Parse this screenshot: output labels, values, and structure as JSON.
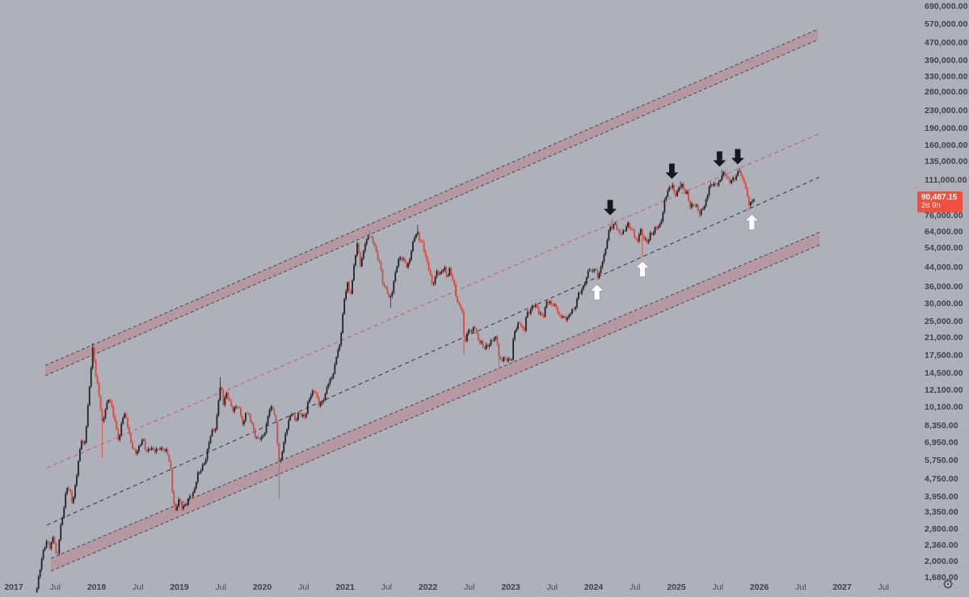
{
  "app": {
    "background": "#aeb1b9",
    "axis_text_color": "#3d414b"
  },
  "price_scale": {
    "labels": [
      "690,000.00",
      "570,000.00",
      "470,000.00",
      "390,000.00",
      "330,000.00",
      "280,000.00",
      "230,000.00",
      "190,000.00",
      "160,000.00",
      "135,000.00",
      "111,000.00",
      "76,000.00",
      "64,000.00",
      "54,000.00",
      "44,000.00",
      "36,000.00",
      "30,000.00",
      "25,000.00",
      "21,000.00",
      "17,500.00",
      "14,500.00",
      "12,100.00",
      "10,100.00",
      "8,350.00",
      "6,950.00",
      "5,750.00",
      "4,750.00",
      "3,950.00",
      "3,350.00",
      "2,800.00",
      "2,360.00",
      "2,000.00",
      "1,680.00"
    ],
    "current": {
      "price": "90,487.15",
      "countdown": "2d 9h",
      "bg": "#f2503c",
      "text_color": "#ffffff"
    },
    "settings_icon": "gear-icon"
  },
  "time_scale": {
    "ticks": [
      {
        "label": "2017",
        "t": 2017,
        "major": true
      },
      {
        "label": "Jul",
        "t": 2017.5,
        "major": false
      },
      {
        "label": "2018",
        "t": 2018,
        "major": true
      },
      {
        "label": "Jul",
        "t": 2018.5,
        "major": false
      },
      {
        "label": "2019",
        "t": 2019,
        "major": true
      },
      {
        "label": "Jul",
        "t": 2019.5,
        "major": false
      },
      {
        "label": "2020",
        "t": 2020,
        "major": true
      },
      {
        "label": "Jul",
        "t": 2020.5,
        "major": false
      },
      {
        "label": "2021",
        "t": 2021,
        "major": true
      },
      {
        "label": "Jul",
        "t": 2021.5,
        "major": false
      },
      {
        "label": "2022",
        "t": 2022,
        "major": true
      },
      {
        "label": "Jul",
        "t": 2022.5,
        "major": false
      },
      {
        "label": "2023",
        "t": 2023,
        "major": true
      },
      {
        "label": "Jul",
        "t": 2023.5,
        "major": false
      },
      {
        "label": "2024",
        "t": 2024,
        "major": true
      },
      {
        "label": "Jul",
        "t": 2024.5,
        "major": false
      },
      {
        "label": "2025",
        "t": 2025,
        "major": true
      },
      {
        "label": "Jul",
        "t": 2025.5,
        "major": false
      },
      {
        "label": "2026",
        "t": 2026,
        "major": true
      },
      {
        "label": "Jul",
        "t": 2026.5,
        "major": false
      },
      {
        "label": "2027",
        "t": 2027,
        "major": true
      },
      {
        "label": "Jul",
        "t": 2027.5,
        "major": false
      }
    ]
  },
  "chart_data": {
    "type": "candlestick",
    "timeframe": "weekly",
    "log_scale": true,
    "grid": false,
    "layout_hints": {
      "visible_time_range": [
        2016.83,
        2027.86
      ],
      "visible_price_range": [
        1680,
        736000
      ],
      "price_axis_side": "right",
      "time_axis_side": "bottom"
    },
    "colors": {
      "up_candle": "#212227",
      "down_candle": "#d9483c",
      "band_fill": "rgba(196,100,110,0.30)",
      "band_edge": "#4a464e",
      "pink_dashed_line": "#c4636d",
      "black_dashed_line": "#3b3d44",
      "down_arrow": "#17181c",
      "up_arrow": "#ffffff"
    },
    "channel": {
      "bands": [
        {
          "name": "upper-channel-band",
          "top_edge": [
            2017.38,
            15700,
            2026.71,
            543000
          ],
          "bottom_edge": [
            2017.38,
            14100,
            2026.71,
            486000
          ]
        },
        {
          "name": "lower-channel-band",
          "top_edge": [
            2017.45,
            2060,
            2026.73,
            64000
          ],
          "bottom_edge": [
            2017.45,
            1800,
            2026.73,
            56000
          ]
        }
      ],
      "lines": [
        {
          "name": "channel-upper-quartile-line",
          "style": "pink-dashed",
          "points": [
            2017.4,
            5340,
            2026.72,
            180000
          ]
        },
        {
          "name": "channel-median-line",
          "style": "black-dashed",
          "points": [
            2017.4,
            2920,
            2026.72,
            114000
          ]
        }
      ]
    },
    "markers": [
      {
        "dir": "up",
        "t": 2024.04,
        "price": 38500
      },
      {
        "dir": "down",
        "t": 2024.2,
        "price": 73800
      },
      {
        "dir": "up",
        "t": 2024.59,
        "price": 49100
      },
      {
        "dir": "down",
        "t": 2024.945,
        "price": 108300
      },
      {
        "dir": "down",
        "t": 2025.52,
        "price": 123200
      },
      {
        "dir": "down",
        "t": 2025.74,
        "price": 126200
      },
      {
        "dir": "up",
        "t": 2025.91,
        "price": 80600
      }
    ],
    "price_anchors": [
      [
        2017.28,
        1500
      ],
      [
        2017.32,
        1850
      ],
      [
        2017.36,
        2250
      ],
      [
        2017.4,
        2500
      ],
      [
        2017.44,
        2300
      ],
      [
        2017.48,
        2600
      ],
      [
        2017.52,
        2000
      ],
      [
        2017.56,
        2800
      ],
      [
        2017.6,
        3400
      ],
      [
        2017.64,
        4350
      ],
      [
        2017.68,
        4150
      ],
      [
        2017.71,
        3650
      ],
      [
        2017.74,
        4400
      ],
      [
        2017.78,
        5700
      ],
      [
        2017.82,
        7200
      ],
      [
        2017.85,
        6500
      ],
      [
        2017.89,
        9700
      ],
      [
        2017.93,
        15000
      ],
      [
        2017.955,
        18900
      ],
      [
        2017.99,
        14200
      ],
      [
        2018.03,
        11500
      ],
      [
        2018.07,
        8600
      ],
      [
        2018.11,
        10000
      ],
      [
        2018.15,
        11100
      ],
      [
        2018.19,
        9900
      ],
      [
        2018.23,
        8500
      ],
      [
        2018.27,
        7000
      ],
      [
        2018.31,
        9000
      ],
      [
        2018.35,
        9350
      ],
      [
        2018.4,
        7500
      ],
      [
        2018.44,
        6450
      ],
      [
        2018.48,
        6150
      ],
      [
        2018.52,
        6750
      ],
      [
        2018.56,
        7400
      ],
      [
        2018.6,
        6300
      ],
      [
        2018.65,
        6500
      ],
      [
        2018.7,
        6450
      ],
      [
        2018.75,
        6600
      ],
      [
        2018.8,
        6400
      ],
      [
        2018.85,
        6350
      ],
      [
        2018.89,
        5550
      ],
      [
        2018.92,
        4000
      ],
      [
        2018.95,
        3300
      ],
      [
        2018.99,
        3800
      ],
      [
        2019.03,
        3550
      ],
      [
        2019.08,
        3650
      ],
      [
        2019.12,
        3900
      ],
      [
        2019.17,
        4050
      ],
      [
        2019.22,
        5050
      ],
      [
        2019.27,
        5300
      ],
      [
        2019.32,
        5800
      ],
      [
        2019.36,
        7200
      ],
      [
        2019.4,
        8050
      ],
      [
        2019.44,
        8000
      ],
      [
        2019.47,
        10800
      ],
      [
        2019.5,
        12900
      ],
      [
        2019.53,
        10600
      ],
      [
        2019.57,
        11900
      ],
      [
        2019.61,
        10500
      ],
      [
        2019.65,
        9600
      ],
      [
        2019.69,
        10400
      ],
      [
        2019.73,
        9900
      ],
      [
        2019.77,
        8100
      ],
      [
        2019.8,
        9550
      ],
      [
        2019.84,
        9200
      ],
      [
        2019.88,
        8500
      ],
      [
        2019.92,
        7300
      ],
      [
        2019.96,
        7200
      ],
      [
        2020.0,
        7300
      ],
      [
        2020.04,
        8050
      ],
      [
        2020.08,
        9900
      ],
      [
        2020.12,
        10000
      ],
      [
        2020.16,
        8900
      ],
      [
        2020.21,
        5400
      ],
      [
        2020.24,
        6400
      ],
      [
        2020.28,
        7500
      ],
      [
        2020.32,
        8750
      ],
      [
        2020.36,
        9700
      ],
      [
        2020.4,
        8800
      ],
      [
        2020.44,
        9450
      ],
      [
        2020.48,
        9150
      ],
      [
        2020.52,
        9200
      ],
      [
        2020.56,
        11100
      ],
      [
        2020.6,
        11700
      ],
      [
        2020.64,
        11900
      ],
      [
        2020.68,
        10450
      ],
      [
        2020.72,
        10700
      ],
      [
        2020.76,
        11500
      ],
      [
        2020.8,
        13050
      ],
      [
        2020.84,
        13800
      ],
      [
        2020.88,
        16100
      ],
      [
        2020.91,
        18700
      ],
      [
        2020.94,
        19150
      ],
      [
        2020.97,
        26500
      ],
      [
        2021.0,
        33000
      ],
      [
        2021.03,
        38200
      ],
      [
        2021.06,
        32300
      ],
      [
        2021.09,
        38900
      ],
      [
        2021.12,
        48700
      ],
      [
        2021.15,
        57400
      ],
      [
        2021.18,
        45100
      ],
      [
        2021.21,
        49600
      ],
      [
        2021.24,
        57400
      ],
      [
        2021.27,
        58900
      ],
      [
        2021.29,
        62000
      ],
      [
        2021.33,
        58300
      ],
      [
        2021.36,
        56200
      ],
      [
        2021.39,
        49000
      ],
      [
        2021.42,
        46400
      ],
      [
        2021.45,
        37300
      ],
      [
        2021.48,
        35600
      ],
      [
        2021.51,
        34300
      ],
      [
        2021.54,
        31600
      ],
      [
        2021.57,
        34700
      ],
      [
        2021.6,
        39900
      ],
      [
        2021.63,
        45600
      ],
      [
        2021.66,
        48900
      ],
      [
        2021.69,
        49000
      ],
      [
        2021.72,
        47200
      ],
      [
        2021.75,
        43800
      ],
      [
        2021.78,
        47700
      ],
      [
        2021.81,
        55000
      ],
      [
        2021.84,
        61700
      ],
      [
        2021.87,
        65000
      ],
      [
        2021.9,
        58700
      ],
      [
        2021.93,
        57300
      ],
      [
        2021.96,
        50800
      ],
      [
        2021.99,
        46300
      ],
      [
        2022.02,
        43100
      ],
      [
        2022.05,
        36900
      ],
      [
        2022.08,
        38400
      ],
      [
        2022.11,
        42400
      ],
      [
        2022.14,
        40100
      ],
      [
        2022.17,
        43200
      ],
      [
        2022.2,
        44500
      ],
      [
        2022.23,
        39500
      ],
      [
        2022.26,
        42800
      ],
      [
        2022.29,
        39700
      ],
      [
        2022.32,
        36000
      ],
      [
        2022.35,
        31300
      ],
      [
        2022.38,
        29500
      ],
      [
        2022.41,
        29000
      ],
      [
        2022.44,
        19500
      ],
      [
        2022.47,
        21500
      ],
      [
        2022.5,
        23300
      ],
      [
        2022.53,
        22500
      ],
      [
        2022.56,
        24400
      ],
      [
        2022.59,
        21300
      ],
      [
        2022.62,
        20000
      ],
      [
        2022.65,
        19800
      ],
      [
        2022.68,
        18900
      ],
      [
        2022.71,
        19600
      ],
      [
        2022.74,
        19400
      ],
      [
        2022.77,
        20300
      ],
      [
        2022.8,
        20600
      ],
      [
        2022.83,
        21300
      ],
      [
        2022.86,
        16900
      ],
      [
        2022.89,
        16700
      ],
      [
        2022.92,
        16850
      ],
      [
        2022.95,
        16500
      ],
      [
        2022.98,
        16600
      ],
      [
        2023.01,
        16950
      ],
      [
        2023.04,
        22700
      ],
      [
        2023.07,
        23300
      ],
      [
        2023.1,
        24600
      ],
      [
        2023.13,
        23500
      ],
      [
        2023.16,
        22400
      ],
      [
        2023.19,
        27500
      ],
      [
        2023.22,
        27500
      ],
      [
        2023.25,
        28500
      ],
      [
        2023.28,
        29250
      ],
      [
        2023.31,
        29300
      ],
      [
        2023.34,
        27600
      ],
      [
        2023.37,
        27000
      ],
      [
        2023.4,
        26500
      ],
      [
        2023.43,
        30500
      ],
      [
        2023.46,
        30300
      ],
      [
        2023.49,
        30300
      ],
      [
        2023.52,
        29900
      ],
      [
        2023.55,
        29200
      ],
      [
        2023.58,
        26100
      ],
      [
        2023.61,
        26050
      ],
      [
        2023.64,
        26000
      ],
      [
        2023.67,
        25900
      ],
      [
        2023.7,
        26550
      ],
      [
        2023.73,
        27950
      ],
      [
        2023.76,
        27900
      ],
      [
        2023.79,
        29900
      ],
      [
        2023.82,
        34150
      ],
      [
        2023.85,
        34100
      ],
      [
        2023.88,
        37300
      ],
      [
        2023.91,
        37800
      ],
      [
        2023.94,
        43800
      ],
      [
        2023.97,
        41600
      ],
      [
        2024.0,
        44200
      ],
      [
        2024.03,
        42850
      ],
      [
        2024.05,
        40000
      ],
      [
        2024.08,
        42000
      ],
      [
        2024.11,
        47750
      ],
      [
        2024.14,
        51700
      ],
      [
        2024.17,
        62400
      ],
      [
        2024.2,
        68300
      ],
      [
        2024.23,
        67200
      ],
      [
        2024.26,
        69600
      ],
      [
        2024.29,
        64000
      ],
      [
        2024.32,
        63800
      ],
      [
        2024.35,
        64000
      ],
      [
        2024.38,
        66200
      ],
      [
        2024.41,
        69400
      ],
      [
        2024.44,
        66200
      ],
      [
        2024.47,
        64900
      ],
      [
        2024.5,
        60800
      ],
      [
        2024.53,
        58100
      ],
      [
        2024.56,
        66700
      ],
      [
        2024.59,
        60700
      ],
      [
        2024.62,
        59000
      ],
      [
        2024.65,
        57300
      ],
      [
        2024.68,
        63300
      ],
      [
        2024.71,
        62800
      ],
      [
        2024.74,
        65800
      ],
      [
        2024.77,
        66600
      ],
      [
        2024.8,
        68700
      ],
      [
        2024.83,
        76700
      ],
      [
        2024.86,
        91000
      ],
      [
        2024.89,
        97700
      ],
      [
        2024.92,
        101200
      ],
      [
        2024.95,
        104800
      ],
      [
        2024.98,
        94200
      ],
      [
        2025.01,
        98600
      ],
      [
        2025.04,
        104500
      ],
      [
        2025.07,
        104100
      ],
      [
        2025.1,
        96100
      ],
      [
        2025.13,
        96600
      ],
      [
        2025.16,
        84400
      ],
      [
        2025.19,
        86100
      ],
      [
        2025.22,
        84400
      ],
      [
        2025.25,
        82600
      ],
      [
        2025.28,
        76300
      ],
      [
        2025.31,
        82600
      ],
      [
        2025.34,
        85000
      ],
      [
        2025.37,
        94000
      ],
      [
        2025.4,
        103200
      ],
      [
        2025.43,
        104600
      ],
      [
        2025.46,
        105600
      ],
      [
        2025.49,
        107300
      ],
      [
        2025.52,
        108900
      ],
      [
        2025.55,
        117400
      ],
      [
        2025.58,
        117900
      ],
      [
        2025.61,
        113500
      ],
      [
        2025.64,
        108300
      ],
      [
        2025.67,
        113000
      ],
      [
        2025.7,
        112800
      ],
      [
        2025.73,
        115800
      ],
      [
        2025.76,
        122000
      ],
      [
        2025.79,
        111700
      ],
      [
        2025.82,
        110100
      ],
      [
        2025.85,
        95900
      ],
      [
        2025.88,
        84600
      ],
      [
        2025.91,
        87300
      ],
      [
        2025.95,
        90487
      ]
    ],
    "wick_extremes": [
      [
        2017.955,
        19900
      ],
      [
        2018.07,
        5920
      ],
      [
        2019.5,
        13880
      ],
      [
        2020.21,
        3850
      ],
      [
        2021.29,
        64900
      ],
      [
        2021.54,
        28800
      ],
      [
        2021.87,
        69000
      ],
      [
        2022.44,
        17600
      ],
      [
        2022.86,
        15500
      ],
      [
        2024.05,
        38500
      ],
      [
        2024.23,
        73800
      ],
      [
        2024.59,
        49100
      ],
      [
        2024.95,
        108300
      ],
      [
        2025.04,
        109300
      ],
      [
        2025.28,
        74400
      ],
      [
        2025.55,
        123200
      ],
      [
        2025.76,
        126200
      ],
      [
        2025.88,
        80600
      ]
    ]
  }
}
